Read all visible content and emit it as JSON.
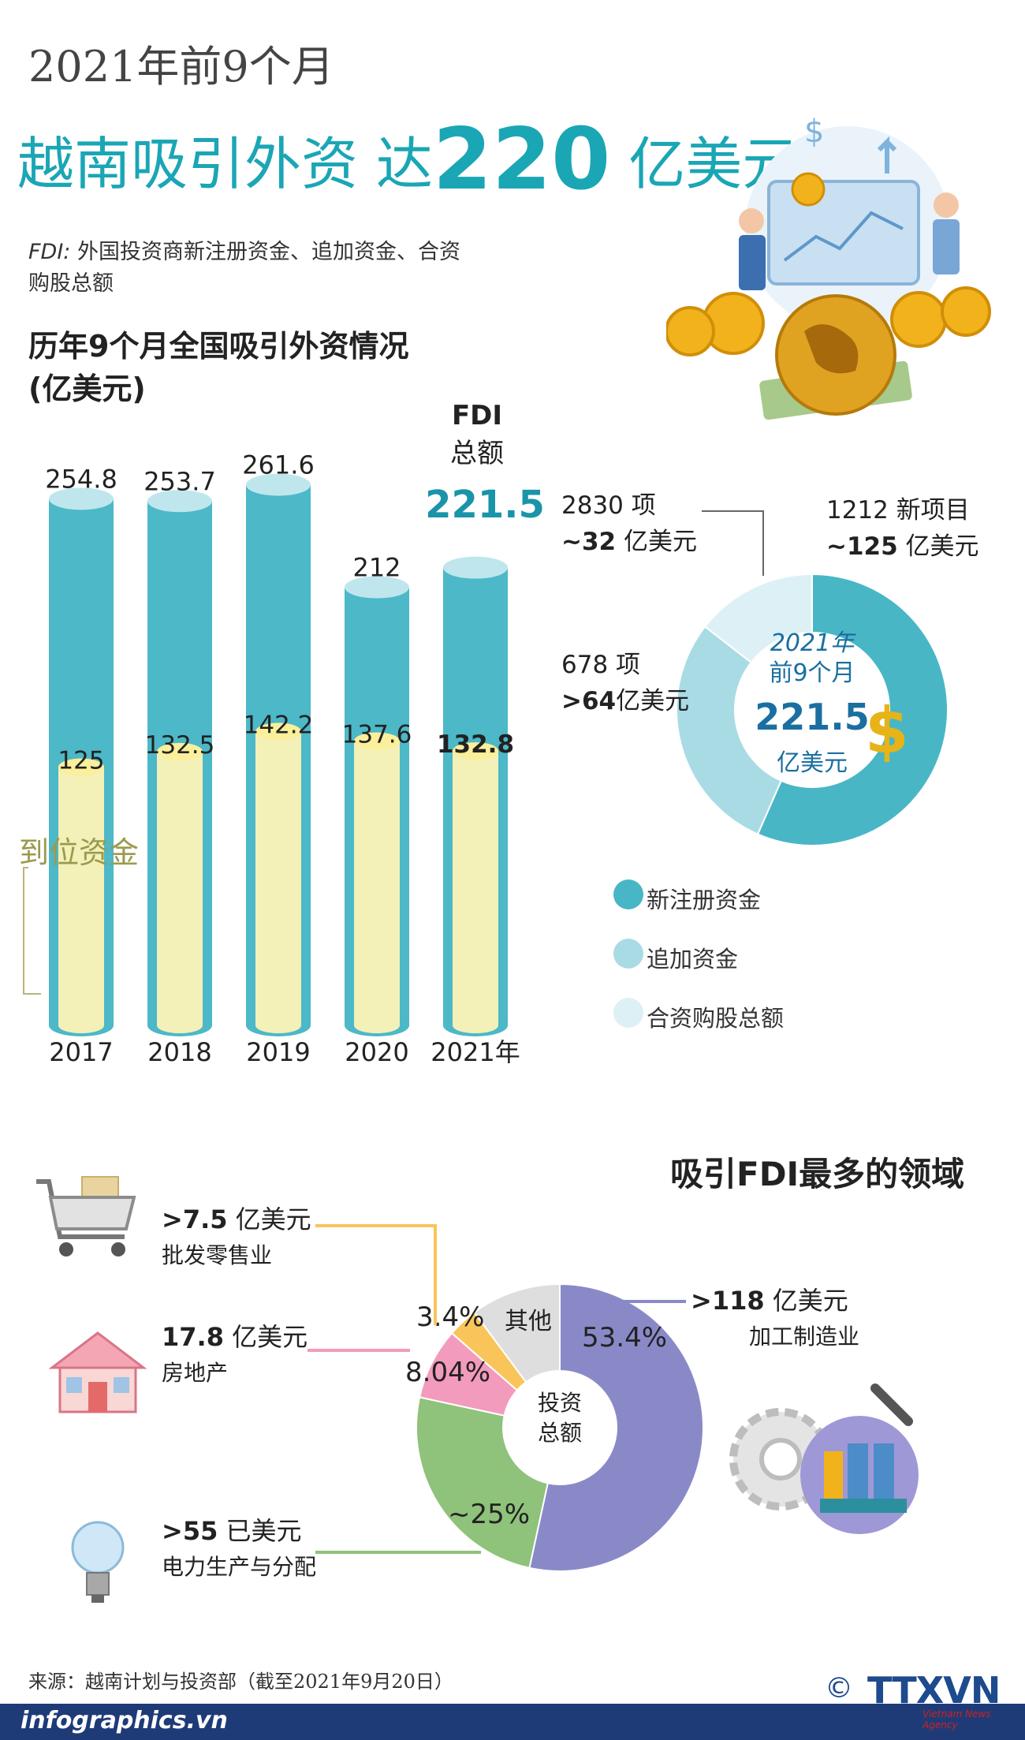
{
  "header": {
    "subtitle": "2021年前9个月",
    "headline_pre": "越南吸引外资 达",
    "headline_num": "220",
    "headline_post": " 亿美元",
    "fdi_note_prefix": "FDI:",
    "fdi_note": " 外国投资商新注册资金、追加资金、合资购股总额"
  },
  "bar_section": {
    "title_line1": "历年9个月全国吸引外资情况",
    "title_line2": "(亿美元)",
    "fdi_head1": "FDI",
    "fdi_head2": "总额",
    "fdi_total": "221.5",
    "paid_label": "到位资金"
  },
  "chart_data": [
    {
      "type": "bar",
      "title": "历年9个月全国吸引外资情况",
      "ylabel": "亿美元",
      "categories": [
        "2017",
        "2018",
        "2019",
        "2020",
        "2021年"
      ],
      "series": [
        {
          "name": "FDI 总额",
          "values": [
            254.8,
            253.7,
            261.6,
            212,
            221.5
          ],
          "color": "#4cb8c8"
        },
        {
          "name": "到位资金",
          "values": [
            125,
            132.5,
            142.2,
            137.6,
            132.8
          ],
          "color": "#f3f0b8"
        }
      ],
      "value_labels": {
        "total": [
          "254.8",
          "253.7",
          "261.6",
          "212",
          ""
        ],
        "paid": [
          "125",
          "132.5",
          "142.2",
          "137.6",
          "132.8"
        ]
      },
      "ylim": [
        0,
        280
      ]
    },
    {
      "type": "pie",
      "title": "2021年前9个月",
      "total_label": "221.5",
      "unit": "亿美元",
      "slices": [
        {
          "name": "新注册资金",
          "value": 125,
          "label_top": "1212 新项目",
          "label_bottom": "~125 亿美元",
          "color": "#49b6c6"
        },
        {
          "name": "追加资金",
          "value": 64,
          "label_top": "678 项",
          "label_bottom": ">64亿美元",
          "color": "#a9dbe5"
        },
        {
          "name": "合资购股总额",
          "value": 32,
          "label_top": "2830 项",
          "label_bottom": "~32 亿美元",
          "color": "#ddf0f6"
        }
      ]
    },
    {
      "type": "pie",
      "title": "吸引FDI最多的领域",
      "center_label": "投资 总额",
      "slices": [
        {
          "name": "加工制造业",
          "value": 53.4,
          "label": "53.4%",
          "amount": ">118 亿美元",
          "color": "#8a89c8"
        },
        {
          "name": "电力生产与分配",
          "value": 25,
          "label": "~25%",
          "amount": ">55 已美元",
          "color": "#8fc27a"
        },
        {
          "name": "房地产",
          "value": 8.04,
          "label": "8.04%",
          "amount": "17.8 亿美元",
          "color": "#f39bbd"
        },
        {
          "name": "批发零售业",
          "value": 3.4,
          "label": "3.4%",
          "amount": ">7.5 亿美元",
          "color": "#f9c55a"
        },
        {
          "name": "其他",
          "value": 10.16,
          "label": "其他",
          "color": "#dedede"
        }
      ]
    }
  ],
  "donut": {
    "center_year": "2021年",
    "center_period": "前9个月",
    "center_value": "221.5",
    "center_unit": "亿美元",
    "new_top": "1212 新项目",
    "new_bottom_bold": "~125",
    "new_bottom": " 亿美元",
    "add_top": "678 项",
    "add_bottom_bold": ">64",
    "add_bottom": "亿美元",
    "jv_top": "2830 项",
    "jv_bottom_bold": "~32",
    "jv_bottom": " 亿美元",
    "legend": [
      "新注册资金",
      "追加资金",
      "合资购股总额"
    ]
  },
  "sectors": {
    "title": "吸引FDI最多的领域",
    "center_line1": "投资",
    "center_line2": "总额",
    "manufacturing_amount_bold": ">118",
    "manufacturing_amount": " 亿美元",
    "manufacturing_name": "加工制造业",
    "power_amount_bold": ">55",
    "power_amount": " 已美元",
    "power_name": "电力生产与分配",
    "realestate_amount_bold": "17.8",
    "realestate_amount": " 亿美元",
    "realestate_name": "房地产",
    "retail_amount_bold": ">7.5",
    "retail_amount": " 亿美元",
    "retail_name": "批发零售业",
    "pct_manufacturing": "53.4%",
    "pct_power": "~25%",
    "pct_realestate": "8.04%",
    "pct_retail": "3.4%",
    "pct_other": "其他"
  },
  "footer": {
    "source": "来源：越南计划与投资部（截至2021年9月20日）",
    "site": "infographics.vn",
    "copyright": "©",
    "logo": "TTXVN",
    "logo_sub": "Vietnam News Agency"
  }
}
